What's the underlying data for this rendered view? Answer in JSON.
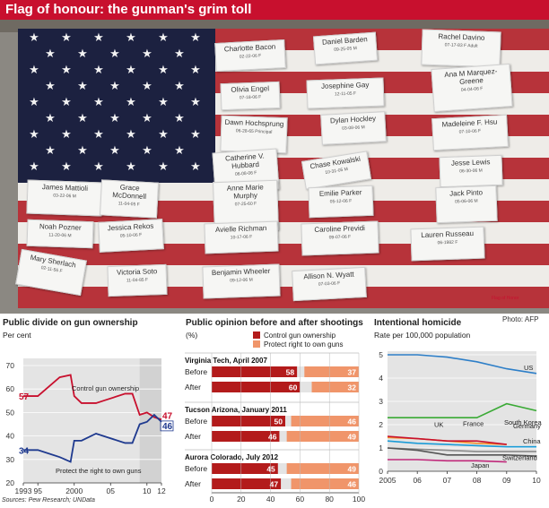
{
  "headline": "Flag of honour: the gunman's grim toll",
  "photo_credit": "Photo: AFP",
  "sources": "Sources: Pew Research; UNData",
  "flag_print": "Flag of Honor",
  "name_tags": [
    {
      "name": "Charlotte Bacon",
      "date": "02-22-06 F"
    },
    {
      "name": "Daniel Barden",
      "date": "09-25-05 M"
    },
    {
      "name": "Rachel Davino",
      "date": "07-17-83 F Adult"
    },
    {
      "name": "Olivia Engel",
      "date": "07-18-06 F"
    },
    {
      "name": "Josephine Gay",
      "date": "12-11-05 F"
    },
    {
      "name": "Ana M Marquez-Greene",
      "date": "04-04-06 F"
    },
    {
      "name": "Dawn Hochsprung",
      "date": "06-28-65 Principal"
    },
    {
      "name": "Dylan Hockley",
      "date": "03-08-06 M"
    },
    {
      "name": "Madeleine F. Hsu",
      "date": "07-10-06 F"
    },
    {
      "name": "Catherine V. Hubbard",
      "date": "06-08-06 F"
    },
    {
      "name": "Chase Kowalski",
      "date": "10-31-05 M"
    },
    {
      "name": "Jesse Lewis",
      "date": "06-30-06 M"
    },
    {
      "name": "James Mattioli",
      "date": "03-22-06 M"
    },
    {
      "name": "Grace McDonnell",
      "date": "11-04-05 F"
    },
    {
      "name": "Anne Marie Murphy",
      "date": "07-25-60 F"
    },
    {
      "name": "Emilie Parker",
      "date": "05-12-06 F"
    },
    {
      "name": "Jack Pinto",
      "date": "05-06-06 M"
    },
    {
      "name": "Noah Pozner",
      "date": "11-20-06 M"
    },
    {
      "name": "Jessica Rekos",
      "date": "05-10-06 F"
    },
    {
      "name": "Avielle Richman",
      "date": "10-17-06 F"
    },
    {
      "name": "Caroline Previdi",
      "date": "09-07-06 F"
    },
    {
      "name": "Lauren Russeau",
      "date": "06-1982 F"
    },
    {
      "name": "Mary Sherlach",
      "date": "02-11-56 F"
    },
    {
      "name": "Victoria Soto",
      "date": "11-04-85 F"
    },
    {
      "name": "Benjamin Wheeler",
      "date": "09-12-06 M"
    },
    {
      "name": "Allison N. Wyatt",
      "date": "07-03-06 F"
    }
  ],
  "colors": {
    "red": "#c8102e",
    "blue": "#1f3a8f",
    "orange": "#f0956a",
    "darkred": "#b31b1b",
    "panel_bg": "#e4e4e4",
    "us": "#2e7fc8",
    "korea": "#3aaa35"
  },
  "chart_data": [
    {
      "type": "line",
      "title": "Public divide on gun ownership",
      "subtitle": "Per cent",
      "x_ticks": [
        "1993",
        "95",
        "2000",
        "05",
        "10",
        "12"
      ],
      "y_ticks": [
        20,
        30,
        40,
        50,
        60,
        70
      ],
      "xlim": [
        1993,
        2012
      ],
      "ylim": [
        20,
        70
      ],
      "series": [
        {
          "name": "Control gun ownership",
          "color": "#c8102e",
          "start_label": "57",
          "end_label": "47",
          "x": [
            1993,
            1995,
            1998,
            1999.5,
            2000,
            2001,
            2003,
            2004,
            2007,
            2008,
            2009,
            2010,
            2011,
            2012
          ],
          "y": [
            57,
            57,
            65,
            66,
            57,
            54,
            54,
            55,
            58,
            58,
            49,
            50,
            48,
            47
          ]
        },
        {
          "name": "Protect the right to own guns",
          "color": "#1f3a8f",
          "start_label": "34",
          "end_label": "46",
          "x": [
            1993,
            1995,
            1998,
            1999.5,
            2000,
            2001,
            2003,
            2004,
            2007,
            2008,
            2009,
            2010,
            2011,
            2012
          ],
          "y": [
            34,
            34,
            31,
            29,
            38,
            38,
            41,
            40,
            37,
            37,
            45,
            46,
            49,
            46
          ]
        }
      ]
    },
    {
      "type": "bar",
      "title": "Public opinion before and after shootings",
      "subtitle": "(%)",
      "x_ticks": [
        0,
        20,
        40,
        60,
        80,
        100
      ],
      "xlim": [
        0,
        100
      ],
      "series_names": [
        "Control gun ownership",
        "Protect right to own guns"
      ],
      "groups": [
        {
          "label": "Virginia Tech, April 2007",
          "rows": [
            {
              "label": "Before",
              "control": 58,
              "protect": 37
            },
            {
              "label": "After",
              "control": 60,
              "protect": 32
            }
          ]
        },
        {
          "label": "Tucson Arizona, January 2011",
          "rows": [
            {
              "label": "Before",
              "control": 50,
              "protect": 46
            },
            {
              "label": "After",
              "control": 46,
              "protect": 49
            }
          ]
        },
        {
          "label": "Aurora Colorado, July 2012",
          "rows": [
            {
              "label": "Before",
              "control": 45,
              "protect": 49
            },
            {
              "label": "After",
              "control": 47,
              "protect": 46
            }
          ]
        }
      ]
    },
    {
      "type": "line",
      "title": "Intentional homicide",
      "subtitle": "Rate per 100,000 population",
      "x_ticks": [
        "2005",
        "06",
        "07",
        "08",
        "09",
        "10"
      ],
      "y_ticks": [
        0,
        1,
        2,
        3,
        4,
        5
      ],
      "xlim": [
        2005,
        2010
      ],
      "ylim": [
        0,
        5
      ],
      "series": [
        {
          "name": "US",
          "color": "#2e7fc8",
          "x": [
            2005,
            2006,
            2007,
            2008,
            2009,
            2010
          ],
          "y": [
            5.0,
            5.0,
            4.9,
            4.7,
            4.4,
            4.2
          ]
        },
        {
          "name": "South Korea",
          "color": "#3aaa35",
          "x": [
            2005,
            2006,
            2007,
            2008,
            2009,
            2010
          ],
          "y": [
            2.3,
            2.3,
            2.3,
            2.3,
            2.9,
            2.6
          ]
        },
        {
          "name": "UK",
          "color": "#f28c28",
          "x": [
            2005,
            2006,
            2007,
            2008,
            2009
          ],
          "y": [
            1.45,
            1.4,
            1.3,
            1.2,
            1.15
          ]
        },
        {
          "name": "France",
          "color": "#c8102e",
          "x": [
            2005,
            2006,
            2007,
            2008,
            2009
          ],
          "y": [
            1.5,
            1.4,
            1.3,
            1.3,
            1.15
          ]
        },
        {
          "name": "Germany",
          "color": "#8a8a8a",
          "x": [
            2005,
            2006,
            2007,
            2008,
            2009,
            2010
          ],
          "y": [
            1.0,
            0.95,
            0.9,
            0.85,
            0.85,
            0.85
          ]
        },
        {
          "name": "China",
          "color": "#1a9bd7",
          "x": [
            2005,
            2006,
            2007,
            2008,
            2009,
            2010
          ],
          "y": [
            1.3,
            1.2,
            1.15,
            1.1,
            1.05,
            1.05
          ]
        },
        {
          "name": "Switzerland",
          "color": "#555555",
          "x": [
            2005,
            2006,
            2007,
            2008,
            2009,
            2010
          ],
          "y": [
            1.0,
            0.9,
            0.7,
            0.7,
            0.7,
            0.65
          ]
        },
        {
          "name": "Japan",
          "color": "#c0287a",
          "x": [
            2005,
            2006,
            2007,
            2008,
            2009
          ],
          "y": [
            0.5,
            0.5,
            0.45,
            0.45,
            0.4
          ]
        }
      ]
    }
  ]
}
